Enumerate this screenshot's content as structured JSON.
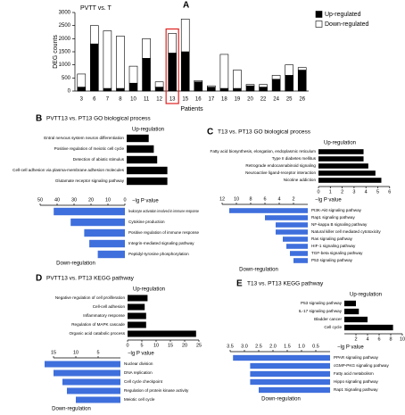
{
  "chart_data": [
    {
      "type": "stacked-bar",
      "label": "A",
      "title": "PVTT vs. T",
      "xlabel": "Patients",
      "ylabel": "DEG counts",
      "categories": [
        "3",
        "6",
        "7",
        "8",
        "10",
        "11",
        "12",
        "13",
        "15",
        "16",
        "17",
        "18",
        "19",
        "20",
        "22",
        "24",
        "25",
        "26"
      ],
      "series": [
        {
          "name": "Up-regulated",
          "color": "#000000",
          "values": [
            150,
            1800,
            100,
            100,
            300,
            1250,
            150,
            1450,
            1500,
            350,
            150,
            100,
            100,
            200,
            150,
            450,
            600,
            800
          ]
        },
        {
          "name": "Down-regulated",
          "color": "#ffffff",
          "values": [
            500,
            700,
            2200,
            2000,
            650,
            750,
            200,
            750,
            1250,
            50,
            50,
            1300,
            700,
            50,
            100,
            150,
            400,
            100
          ]
        }
      ],
      "ylim": [
        0,
        3000
      ],
      "yticks": [
        0,
        500,
        1000,
        1500,
        2000,
        2500,
        3000
      ],
      "highlight": "13",
      "highlight_color": "#e02020"
    },
    {
      "type": "diverging-bar",
      "label": "B",
      "title": "PVTT13 vs. PT13 GO biological process",
      "up_label": "Up-regulation",
      "down_label": "Down-regulation",
      "xlabel": "−lg P value",
      "color_up": "#000000",
      "color_down": "#3f6fdc",
      "up": {
        "categories": [
          "Entral nervous system neuron differentiation",
          "Positive regulation of meiotic cell cycle",
          "Detection of abiotic stimulus",
          "Cell-cell adhesion via plasma-membrane adhesion molecules",
          "Glutamate receptor signaling pathway"
        ],
        "values": [
          13,
          16,
          18,
          24,
          24
        ],
        "xlim": [
          0,
          50
        ]
      },
      "down": {
        "categories": [
          "leukocyte activation involved in immune response",
          "Cytokine production",
          "Positive regulation of immune response",
          "Integrin-mediated signaling pathway",
          "Peptidyl-tyrosine phosphorylation"
        ],
        "values": [
          42,
          32,
          24,
          21,
          16
        ],
        "xlim": [
          0,
          50
        ],
        "xticks": [
          50,
          40,
          30,
          20,
          10,
          0
        ]
      }
    },
    {
      "type": "diverging-bar",
      "label": "C",
      "title": "T13 vs. PT13 GO biological process",
      "up_label": "Up-regulation",
      "down_label": "Down-regulation",
      "xlabel": "−lg P value",
      "color_up": "#000000",
      "color_down": "#3f6fdc",
      "up": {
        "categories": [
          "Fatty acid biosynthesis, elongation, endoplasmic reticulum",
          "Type II diabetes mellitus",
          "Retrograde endocannabinoid signaling",
          "Neuroactive ligand-receptor interaction",
          "Nicotine addiction"
        ],
        "values": [
          3.8,
          3.8,
          4.2,
          4.8,
          5.3
        ],
        "xlim": [
          0,
          6
        ],
        "xticks": [
          0,
          1,
          2,
          3,
          4,
          5,
          6
        ]
      },
      "down": {
        "categories": [
          "PI3K-Akt signaling pathway",
          "Rap1 signaling pathway",
          "NF-kappa B signaling pathway",
          "Natural killer cell mediated cytotoxicity",
          "Ras signaling pathway",
          "HIF-1 signaling pathway",
          "TGF-beta signaling pathway",
          "P53 signaling pathway"
        ],
        "values": [
          11,
          6,
          4.5,
          4.5,
          3.5,
          3,
          2.5,
          2
        ],
        "xlim": [
          0,
          12
        ],
        "xticks": [
          12,
          10,
          8,
          6,
          4,
          2
        ]
      }
    },
    {
      "type": "diverging-bar",
      "label": "D",
      "title": "PVTT13 vs. PT13 KEGG pathway",
      "up_label": "Up-regulation",
      "down_label": "Down-regulation",
      "xlabel": "−lg P value",
      "color_up": "#000000",
      "color_down": "#3f6fdc",
      "up": {
        "categories": [
          "Negative regulation of cell proliferation",
          "Cell-cell adhesion",
          "Inflammatory response",
          "Regulation of MAPK cascade",
          "Organic acid catabolic process"
        ],
        "values": [
          7,
          6,
          6.5,
          6.5,
          24
        ],
        "xlim": [
          0,
          25
        ],
        "xticks": [
          0,
          5,
          10,
          15,
          20,
          25
        ]
      },
      "down": {
        "categories": [
          "Nuclear division",
          "DNA replication",
          "Cell cycle checkpoint",
          "Regulation of protein kinase activity",
          "Meiotic cell cycle"
        ],
        "values": [
          17,
          15,
          13,
          12,
          10
        ],
        "xlim": [
          0,
          15
        ],
        "xticks": [
          15,
          10,
          5
        ]
      }
    },
    {
      "type": "diverging-bar",
      "label": "E",
      "title": "T13 vs. PT13 KEGG pathway",
      "up_label": "Up-regulation",
      "down_label": "Down-regulation",
      "xlabel": "−lg P value",
      "color_up": "#000000",
      "color_down": "#3f6fdc",
      "up": {
        "categories": [
          "P53 signaling pathway",
          "IL-17 signaling pathway",
          "Bladder cancer",
          "Cell cycle"
        ],
        "values": [
          2,
          2.5,
          4,
          8.4
        ],
        "xlim": [
          0,
          10
        ],
        "xticks": [
          2,
          4,
          6,
          8,
          10
        ]
      },
      "down": {
        "categories": [
          "PPAR signaling pathway",
          "cGMP-PKG signaling pathway",
          "Fatty acid metabolism",
          "Hippo signaling pathway",
          "Rap1 Signaling pathway"
        ],
        "values": [
          3.4,
          2.8,
          2.8,
          2.8,
          2.5
        ],
        "xlim": [
          0,
          3.5
        ],
        "xticks": [
          3.5,
          {
            "value": 3,
            "label": "3.0"
          },
          2.5,
          {
            "value": 2,
            "label": "2.0"
          },
          1.5,
          {
            "value": 1,
            "label": "1.0"
          },
          0.5
        ]
      }
    }
  ]
}
